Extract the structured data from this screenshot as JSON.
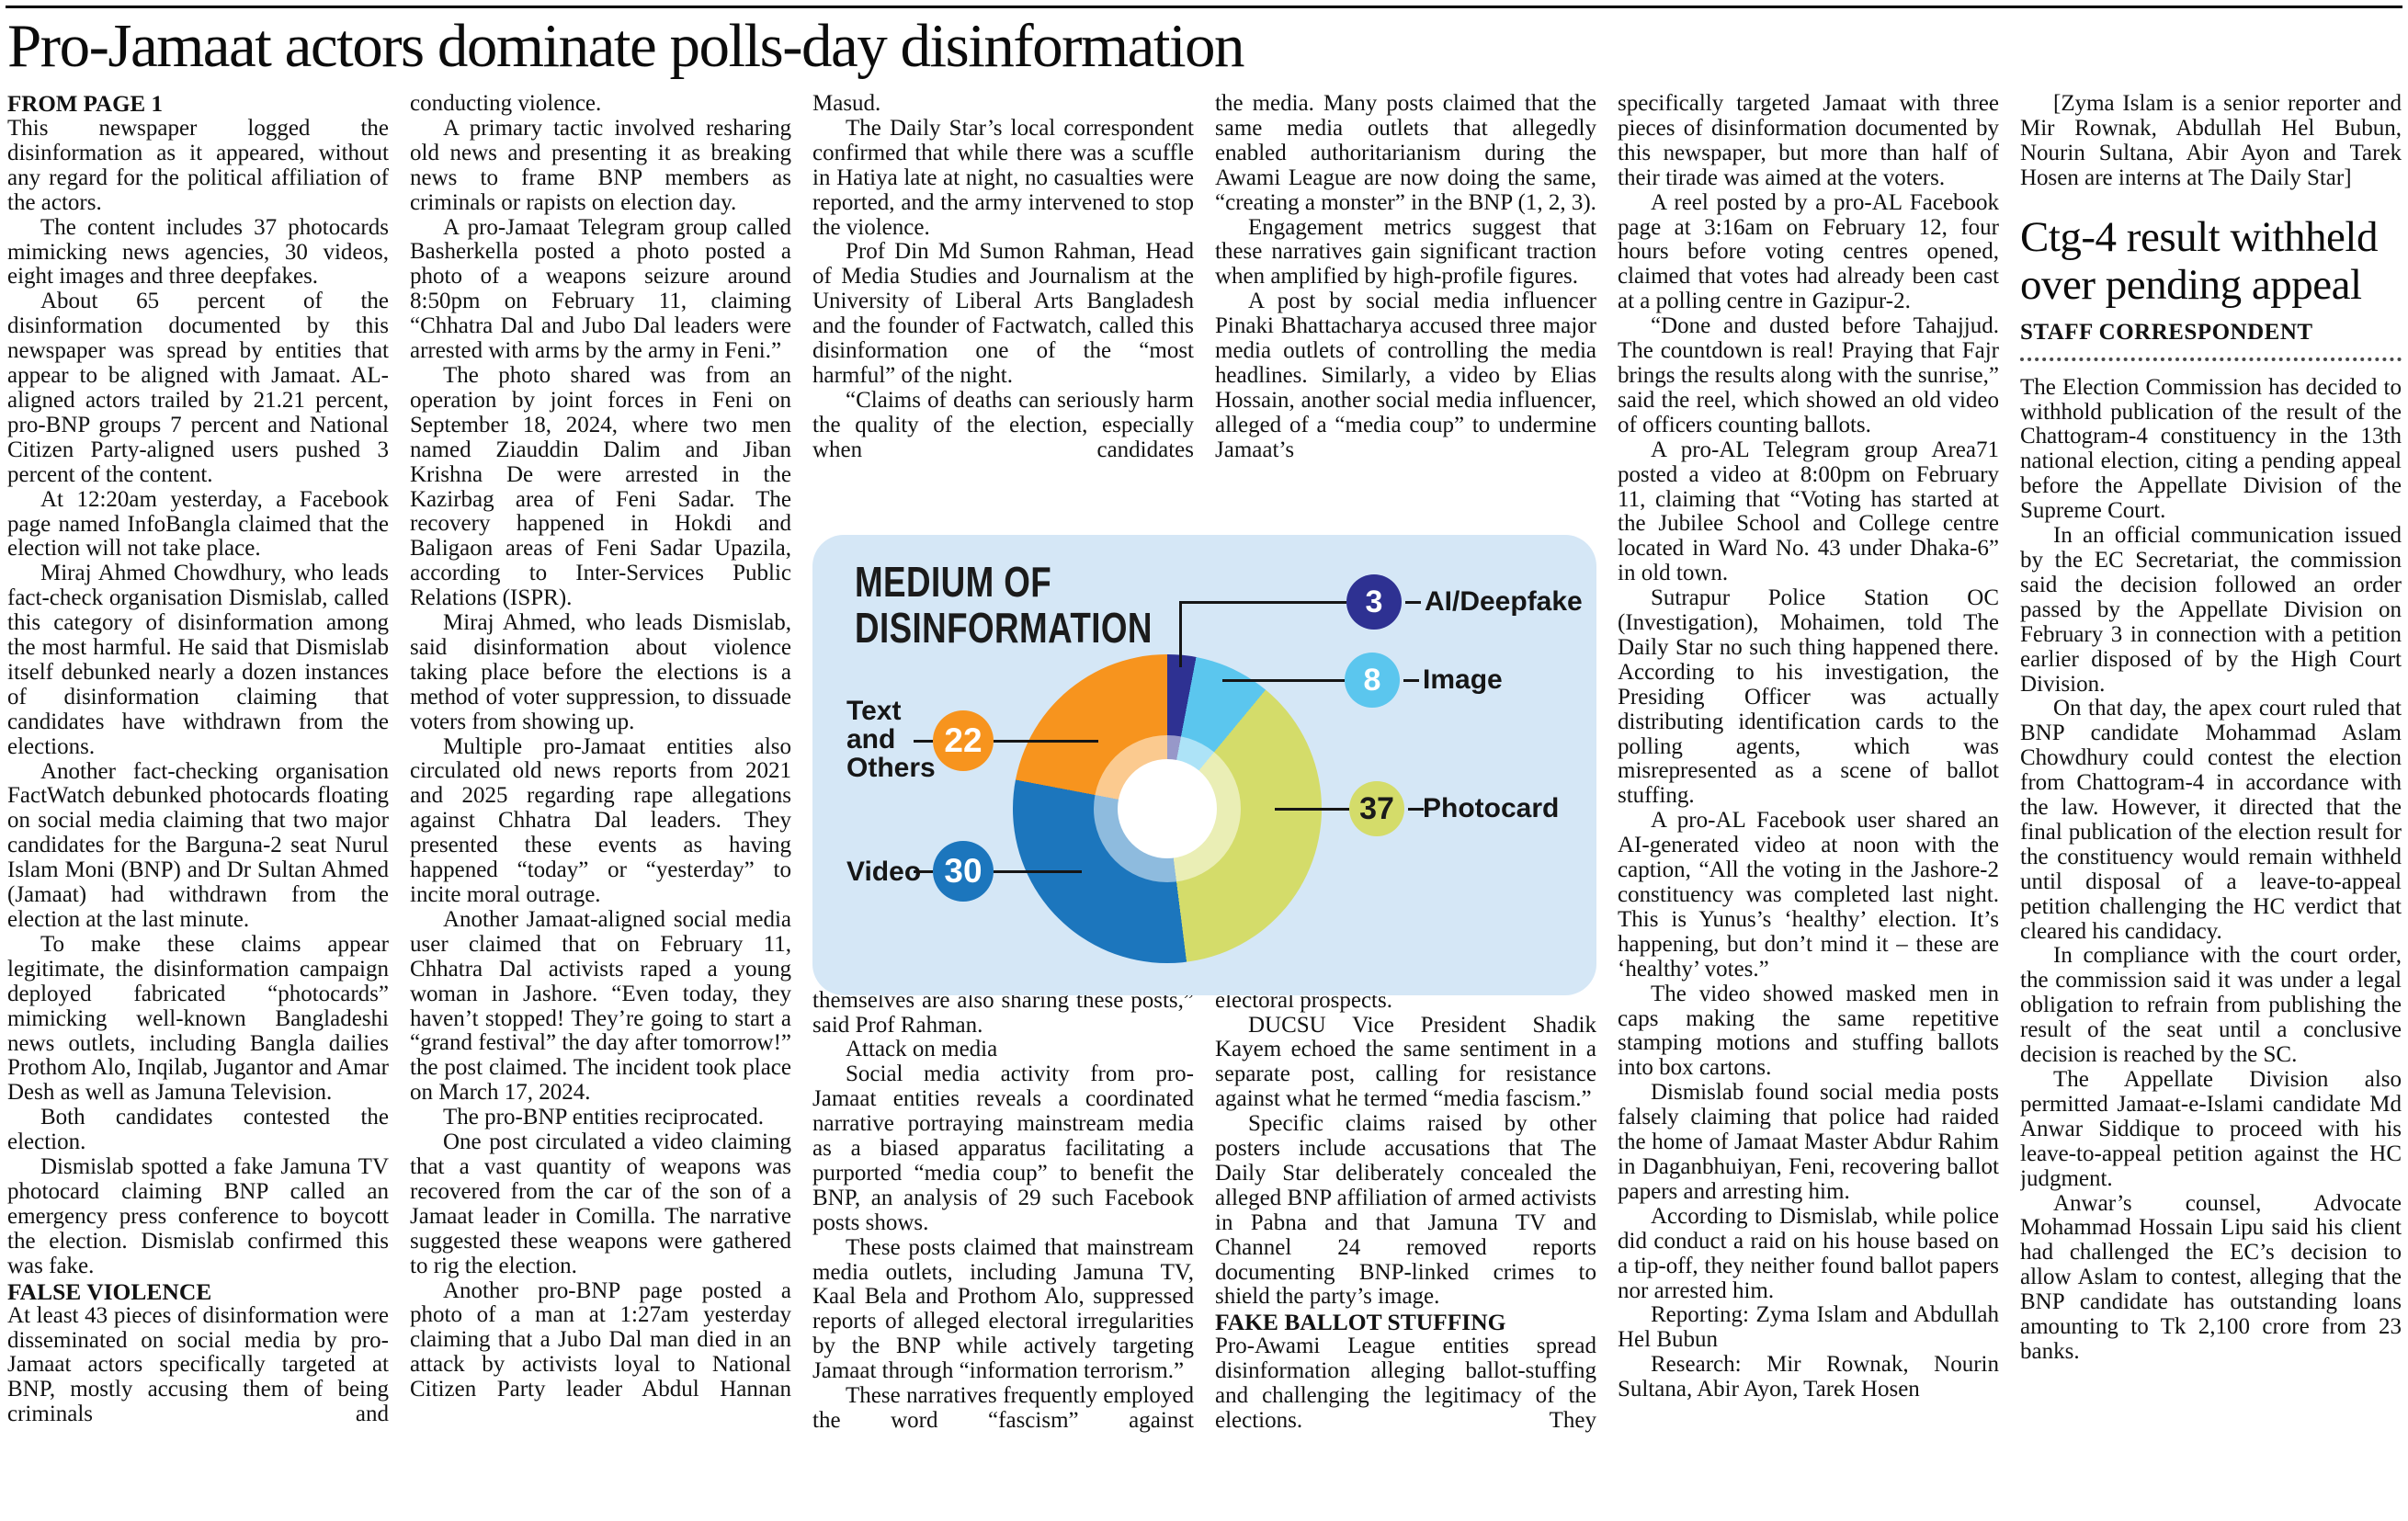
{
  "headline": "Pro-Jamaat actors dominate polls-day disinformation",
  "chart_data": {
    "type": "pie",
    "donut": true,
    "title": "MEDIUM OF DISINFORMATION",
    "title_lines": [
      "MEDIUM OF",
      "DISINFORMATION"
    ],
    "panel_background": "#d5e7f6",
    "start_angle_deg": 0,
    "direction": "clockwise",
    "slices": [
      {
        "label": "AI/Deepfake",
        "value": 3,
        "color": "#2e3192",
        "value_text_color": "#ffffff"
      },
      {
        "label": "Image",
        "value": 8,
        "color": "#5bc6ee",
        "value_text_color": "#ffffff"
      },
      {
        "label": "Photocard",
        "value": 37,
        "color": "#d4dc6a",
        "value_text_color": "#1a1a1a"
      },
      {
        "label": "Video",
        "value": 30,
        "color": "#1c76bd",
        "value_text_color": "#ffffff"
      },
      {
        "label": "Text and Others",
        "value": 22,
        "color": "#f7941e",
        "value_text_color": "#ffffff"
      }
    ]
  },
  "columns": [
    {
      "blocks": [
        {
          "t": "kicker",
          "text": "FROM PAGE 1"
        },
        {
          "t": "p",
          "ind": false,
          "text": "This newspaper logged the disinformation as it appeared, without any regard for the political affiliation of the actors."
        },
        {
          "t": "p",
          "text": "The content includes 37 photocards mimicking news agencies, 30 videos, eight images and three deepfakes."
        },
        {
          "t": "p",
          "text": "About 65 percent of the disinformation documented by this newspaper was spread by entities that appear to be aligned with Jamaat. AL-aligned actors trailed by 21.21 percent, pro-BNP groups 7 percent and National Citizen Party-aligned users pushed 3 percent of the content."
        },
        {
          "t": "p",
          "text": "At 12:20am yesterday, a Facebook page named InfoBangla claimed that the election will not take place."
        },
        {
          "t": "p",
          "text": "Miraj Ahmed Chowdhury, who leads fact-check organisation Dismislab, called this category of disinformation among the most harmful. He said that Dismislab itself debunked nearly a dozen instances of disinformation claiming that candidates have withdrawn from the elections."
        },
        {
          "t": "p",
          "text": "Another fact-checking organisation FactWatch debunked photocards floating on social media claiming that two major candidates for the Barguna-2 seat Nurul Islam Moni (BNP) and Dr Sultan Ahmed (Jamaat) had withdrawn from the election at the last minute."
        },
        {
          "t": "p",
          "text": "To make these claims appear legitimate, the disinformation campaign deployed fabricated “photocards” mimicking well-known Bangladeshi news outlets, including Bangla dailies Prothom Alo, Inqilab, Jugantor and Amar Desh as well as Jamuna Television."
        },
        {
          "t": "p",
          "text": "Both candidates contested the election."
        },
        {
          "t": "p",
          "text": "Dismislab spotted a fake Jamuna TV photocard claiming BNP called an emergency press conference to boycott the election. Dismislab confirmed this was fake."
        },
        {
          "t": "sub",
          "text": "FALSE VIOLENCE"
        },
        {
          "t": "p",
          "ind": false,
          "cont": true,
          "text": "At least 43 pieces of disinformation were disseminated on social media by pro-Jamaat actors specifically targeted at BNP, mostly accusing them of being criminals and"
        }
      ]
    },
    {
      "blocks": [
        {
          "t": "p",
          "ind": false,
          "text": "conducting violence."
        },
        {
          "t": "p",
          "text": "A primary tactic involved resharing old news and presenting it as breaking news to frame BNP members as criminals or rapists on election day."
        },
        {
          "t": "p",
          "text": "A pro-Jamaat Telegram group called Basherkella posted a photo posted a photo of a weapons seizure around 8:50pm on February 11, claiming “Chhatra Dal and Jubo Dal leaders were arrested with arms by the army in Feni.”"
        },
        {
          "t": "p",
          "text": "The photo shared was from an operation by joint forces in Feni on September 18, 2024, where two men named Ziauddin Dalim and Jiban Krishna De were arrested in the Kazirbag area of Feni Sadar. The recovery happened in Hokdi and Baligaon areas of Feni Sadar Upazila, according to Inter-Services Public Relations (ISPR)."
        },
        {
          "t": "p",
          "text": "Miraj Ahmed, who leads Dismislab, said disinformation about violence taking place before the elections is a method of voter suppression, to dissuade voters from showing up."
        },
        {
          "t": "p",
          "text": "Multiple pro-Jamaat entities also circulated old news reports from 2021 and 2025 regarding rape allegations against Chhatra Dal leaders. They presented these events as having happened “today” or “yesterday” to incite moral outrage."
        },
        {
          "t": "p",
          "text": "Another Jamaat-aligned social media user claimed that on February 11, Chhatra Dal activists raped a young woman in Jashore. “Even today, they haven’t stopped! They’re going to start a “grand festival” the day after tomorrow!” the post claimed. The incident took place on March 17, 2024."
        },
        {
          "t": "p",
          "text": "The pro-BNP entities reciprocated."
        },
        {
          "t": "p",
          "text": "One post circulated a video claiming that a vast quantity of weapons was recovered from the car of the son of a Jamaat leader in Comilla. The narrative suggested these weapons were gathered to rig the election."
        },
        {
          "t": "p",
          "cont": true,
          "text": "Another pro-BNP page posted a photo of a man at 1:27am yesterday claiming that a Jubo Dal man died in an attack by activists loyal to National Citizen Party leader Abdul Hannan"
        }
      ]
    },
    {
      "blocks": [
        {
          "t": "p",
          "ind": false,
          "text": "Masud."
        },
        {
          "t": "p",
          "text": "The Daily Star’s local correspondent confirmed that while there was a scuffle in Hatiya late at night, no casualties were reported, and the army intervened to stop the violence."
        },
        {
          "t": "p",
          "text": "Prof Din Md Sumon Rahman, Head of Media Studies and Journalism at the University of Liberal Arts Bangladesh and the founder of Factwatch, called this disinformation one of the “most harmful” of the night."
        },
        {
          "t": "p",
          "cont": true,
          "text": "“Claims of deaths can seriously harm the quality of the election, especially when candidates"
        },
        {
          "t": "spacer"
        },
        {
          "t": "p",
          "ind": false,
          "text": "themselves are also sharing these posts,” said Prof Rahman."
        },
        {
          "t": "p",
          "text": "Attack on media"
        },
        {
          "t": "p",
          "text": "Social media activity from pro-Jamaat entities reveals a coordinated narrative portraying mainstream media as a biased apparatus facilitating a purported “media coup” to benefit the BNP, an analysis of 29 such Facebook posts shows."
        },
        {
          "t": "p",
          "text": "These posts claimed that mainstream media outlets, including Jamuna TV, Kaal Bela and Prothom Alo, suppressed reports of alleged electoral irregularities by the BNP while actively targeting Jamaat through “information terrorism.”"
        },
        {
          "t": "p",
          "cont": true,
          "text": "These narratives frequently employed the word “fascism” against"
        }
      ]
    },
    {
      "blocks": [
        {
          "t": "p",
          "ind": false,
          "text": "the media. Many posts claimed that the same media outlets that allegedly enabled authoritarianism during the Awami League are now doing the same, “creating a monster” in the BNP (1, 2, 3)."
        },
        {
          "t": "p",
          "text": "Engagement metrics suggest that these narratives gain significant traction when amplified by high-profile figures."
        },
        {
          "t": "p",
          "cont": true,
          "text": "A post by social media influencer Pinaki Bhattacharya accused three major media outlets of controlling the media headlines. Similarly, a video by Elias Hossain, another social media influencer, alleged of a “media coup” to undermine Jamaat’s"
        },
        {
          "t": "spacer"
        },
        {
          "t": "p",
          "ind": false,
          "text": "electoral prospects."
        },
        {
          "t": "p",
          "text": "DUCSU Vice President Shadik Kayem echoed the same sentiment in a separate post, calling for resistance against what he termed “media fascism.”"
        },
        {
          "t": "p",
          "text": "Specific claims raised by other posters include accusations that The Daily Star deliberately concealed the alleged BNP affiliation of armed activists in Pabna and that Jamuna TV and Channel 24 removed reports documenting BNP-linked crimes to shield the party’s image."
        },
        {
          "t": "sub",
          "text": "FAKE BALLOT STUFFING"
        },
        {
          "t": "p",
          "ind": false,
          "cont": true,
          "text": "Pro-Awami League entities spread disinformation alleging ballot-stuffing and challenging the legitimacy of the elections. They"
        }
      ]
    },
    {
      "blocks": [
        {
          "t": "p",
          "ind": false,
          "text": "specifically targeted Jamaat with three pieces of disinformation documented by this newspaper, but more than half of their tirade was aimed at the voters."
        },
        {
          "t": "p",
          "text": "A reel posted by a pro-AL Facebook page at 3:16am on February 12, four hours before voting centres opened, claimed that votes had already been cast at a polling centre in Gazipur-2."
        },
        {
          "t": "p",
          "text": "“Done and dusted before Tahajjud. The countdown is real! Praying that Fajr brings the results along with the sunrise,” said the reel, which showed an old video of officers counting ballots."
        },
        {
          "t": "p",
          "text": "A pro-AL Telegram group Area71 posted a video at 8:00pm on February 11, claiming that “Voting has started at the Jubilee School and College centre located in Ward No. 43 under Dhaka-6” in old town."
        },
        {
          "t": "p",
          "text": "Sutrapur Police Station OC (Investigation), Mohaimen, told The Daily Star no such thing happened there. According to his investigation, the Presiding Officer was actually distributing identification cards to the polling agents, which was misrepresented as a scene of ballot stuffing."
        },
        {
          "t": "p",
          "text": "A pro-AL Facebook user shared an AI-generated video at noon with the caption, “All the voting in the Jashore-2 constituency was completed last night. This is Yunus’s ‘healthy’ election. It’s happening, but don’t mind it – these are ‘healthy’ votes.”"
        },
        {
          "t": "p",
          "text": "The video showed masked men in caps making the same repetitive stamping motions and stuffing ballots into box cartons."
        },
        {
          "t": "p",
          "text": "Dismislab found social media posts falsely claiming that police had raided the home of Jamaat Master Abdur Rahim in Daganbhuiyan, Feni, recovering ballot papers and arresting him."
        },
        {
          "t": "p",
          "text": "According to Dismislab, while police did conduct a raid on his house based on a tip-off, they neither found ballot papers nor arrested him."
        },
        {
          "t": "p",
          "text": "Reporting: Zyma Islam and Abdullah Hel Bubun"
        },
        {
          "t": "p",
          "text": "Research: Mir Rownak, Nourin Sultana, Abir Ayon, Tarek Hosen"
        }
      ]
    },
    {
      "blocks": [
        {
          "t": "p",
          "text": "[Zyma Islam is a senior reporter and Mir Rownak, Abdullah Hel Bubun, Nourin Sultana, Abir Ayon and Tarek Hosen are interns at The Daily Star]"
        },
        {
          "t": "h2",
          "text": "Ctg-4 result withheld over pending appeal"
        },
        {
          "t": "byline",
          "text": "STAFF CORRESPONDENT"
        },
        {
          "t": "rule"
        },
        {
          "t": "p",
          "ind": false,
          "text": "The Election Commission has decided to withhold publication of the result of the Chattogram-4 constituency in the 13th national election, citing a pending appeal before the Appellate Division of the Supreme Court."
        },
        {
          "t": "p",
          "text": "In an official communication issued by the EC Secretariat, the commission said the decision followed an order passed by the Appellate Division on February 3 in connection with a petition earlier disposed of by the High Court Division."
        },
        {
          "t": "p",
          "text": "On that day, the apex court ruled that BNP candidate Mohammad Aslam Chowdhury could contest the election from Chattogram-4 in accordance with the law. However, it directed that the final publication of the election result for the constituency would remain withheld until disposal of a leave-to-appeal petition challenging the HC verdict that cleared his candidacy."
        },
        {
          "t": "p",
          "text": "In compliance with the court order, the commission said it was under a legal obligation to refrain from publishing the result of the seat until a conclusive decision is reached by the SC."
        },
        {
          "t": "p",
          "text": "The Appellate Division also permitted Jamaat-e-Islami candidate Md Anwar Siddique to proceed with his leave-to-appeal petition against the HC judgment."
        },
        {
          "t": "p",
          "text": "Anwar’s counsel, Advocate Mohammad Hossain Lipu said his client had challenged the EC’s decision to allow Aslam to contest, alleging that the BNP candidate has outstanding loans amounting to Tk 2,100 crore from 23 banks."
        }
      ]
    }
  ]
}
